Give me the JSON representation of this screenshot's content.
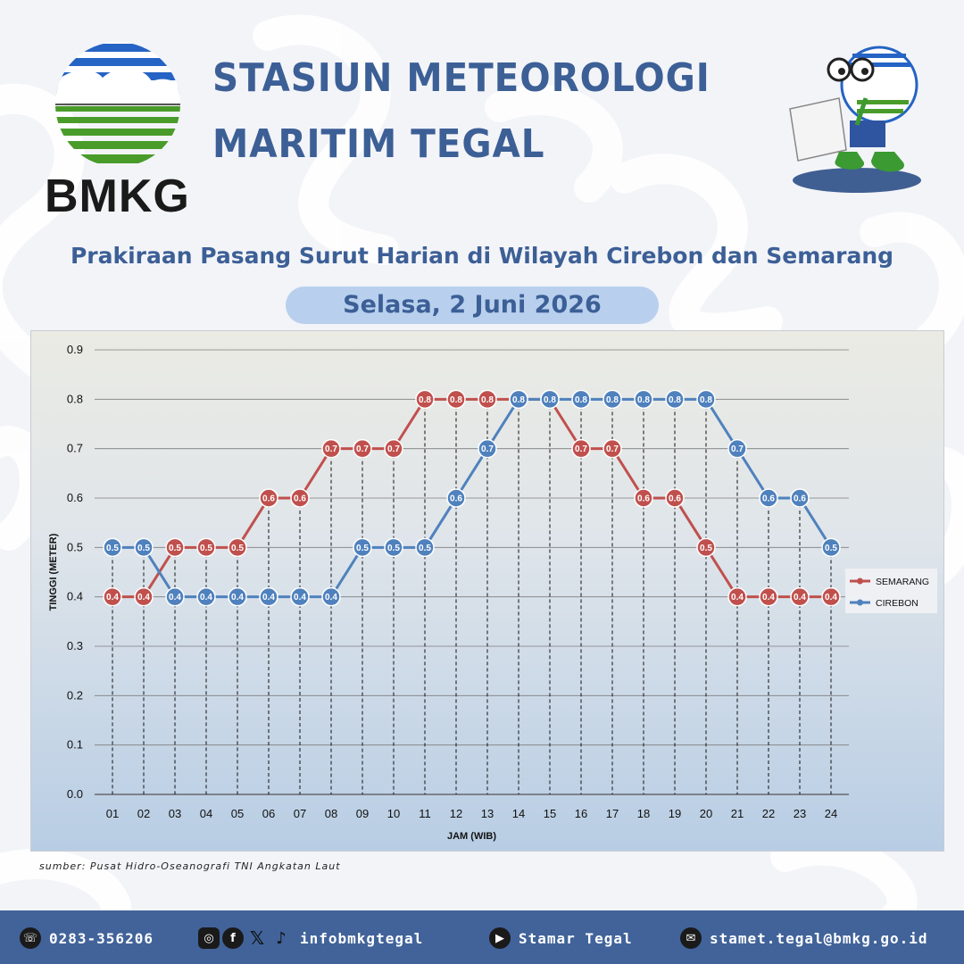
{
  "header": {
    "logo_text": "BMKG",
    "title_line1": "STASIUN METEOROLOGI",
    "title_line2": "MARITIM TEGAL",
    "subtitle": "Prakiraan Pasang Surut Harian di Wilayah Cirebon dan Semarang",
    "date": "Selasa, 2 Juni 2026"
  },
  "colors": {
    "title_blue": "#3c5f96",
    "semarang_red": "#c0504d",
    "cirebon_blue": "#4f81bd",
    "footer_blue": "#41639a"
  },
  "chart_data": {
    "type": "line",
    "xlabel": "JAM (WIB)",
    "ylabel": "TINGGI (METER)",
    "ylim": [
      0,
      0.9
    ],
    "yticks": [
      "0.0",
      "0.1",
      "0.2",
      "0.3",
      "0.4",
      "0.5",
      "0.6",
      "0.7",
      "0.8",
      "0.9"
    ],
    "categories": [
      "01",
      "02",
      "03",
      "04",
      "05",
      "06",
      "07",
      "08",
      "09",
      "10",
      "11",
      "12",
      "13",
      "14",
      "15",
      "16",
      "17",
      "18",
      "19",
      "20",
      "21",
      "22",
      "23",
      "24"
    ],
    "grid": true,
    "legend_position": "right",
    "series": [
      {
        "name": "SEMARANG",
        "color": "#c0504d",
        "values": [
          0.4,
          0.4,
          0.5,
          0.5,
          0.5,
          0.6,
          0.6,
          0.7,
          0.7,
          0.7,
          0.8,
          0.8,
          0.8,
          0.8,
          0.8,
          0.7,
          0.7,
          0.6,
          0.6,
          0.5,
          0.4,
          0.4,
          0.4,
          0.4
        ]
      },
      {
        "name": "CIREBON",
        "color": "#4f81bd",
        "values": [
          0.5,
          0.5,
          0.4,
          0.4,
          0.4,
          0.4,
          0.4,
          0.4,
          0.5,
          0.5,
          0.5,
          0.6,
          0.7,
          0.8,
          0.8,
          0.8,
          0.8,
          0.8,
          0.8,
          0.8,
          0.7,
          0.6,
          0.6,
          0.5
        ]
      }
    ]
  },
  "source_note": "sumber: Pusat Hidro-Oseanografi TNI Angkatan Laut",
  "footer": {
    "phone": "0283-356206",
    "social_handle": "infobmkgtegal",
    "youtube": "Stamar Tegal",
    "email": "stamet.tegal@bmkg.go.id"
  },
  "icons": [
    "phone-icon",
    "instagram-icon",
    "facebook-icon",
    "x-icon",
    "tiktok-icon",
    "youtube-icon",
    "mail-icon"
  ]
}
